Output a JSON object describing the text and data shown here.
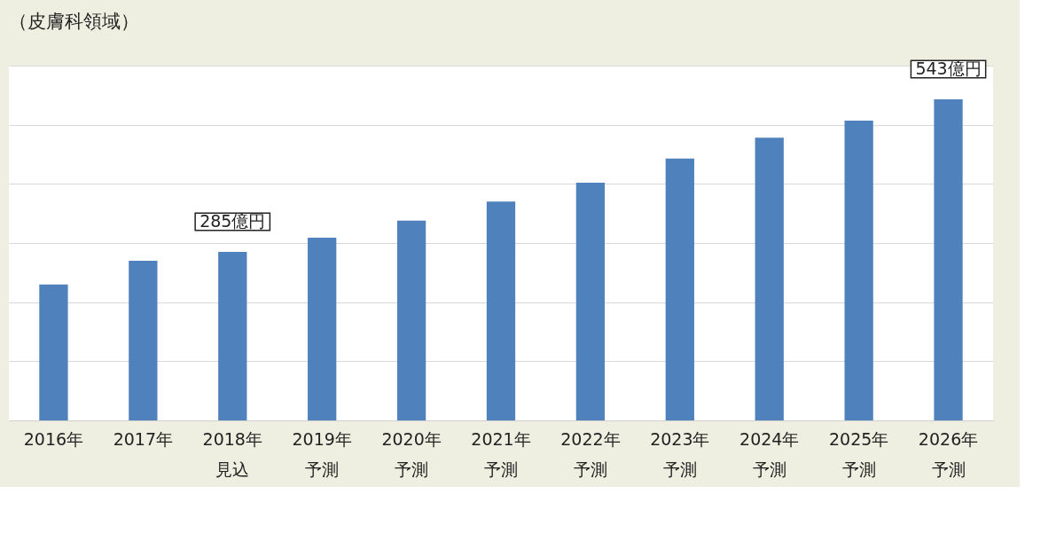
{
  "chart_data": {
    "type": "bar",
    "title": "（皮膚科領域）",
    "categories": [
      "2016年",
      "2017年",
      "2018年見込",
      "2019年予測",
      "2020年予測",
      "2021年予測",
      "2022年予測",
      "2023年予測",
      "2024年予測",
      "2025年予測",
      "2026年予測"
    ],
    "values": [
      230,
      270,
      285,
      309,
      338,
      370,
      402,
      443,
      478,
      507,
      543
    ],
    "value_labels": [
      null,
      null,
      "285億円",
      null,
      null,
      null,
      null,
      null,
      null,
      null,
      "543億円"
    ],
    "color": "#4f81bd",
    "ylim": [
      0,
      600
    ],
    "yticks": [
      {
        "value": 0,
        "label": null
      },
      {
        "value": 100,
        "label": null
      },
      {
        "value": 200,
        "label": null
      },
      {
        "value": 300,
        "label": null
      },
      {
        "value": 400,
        "label": null
      },
      {
        "value": 500,
        "label": null
      },
      {
        "value": 600,
        "label": null
      }
    ],
    "tick_labels": "x",
    "grid": "y"
  }
}
